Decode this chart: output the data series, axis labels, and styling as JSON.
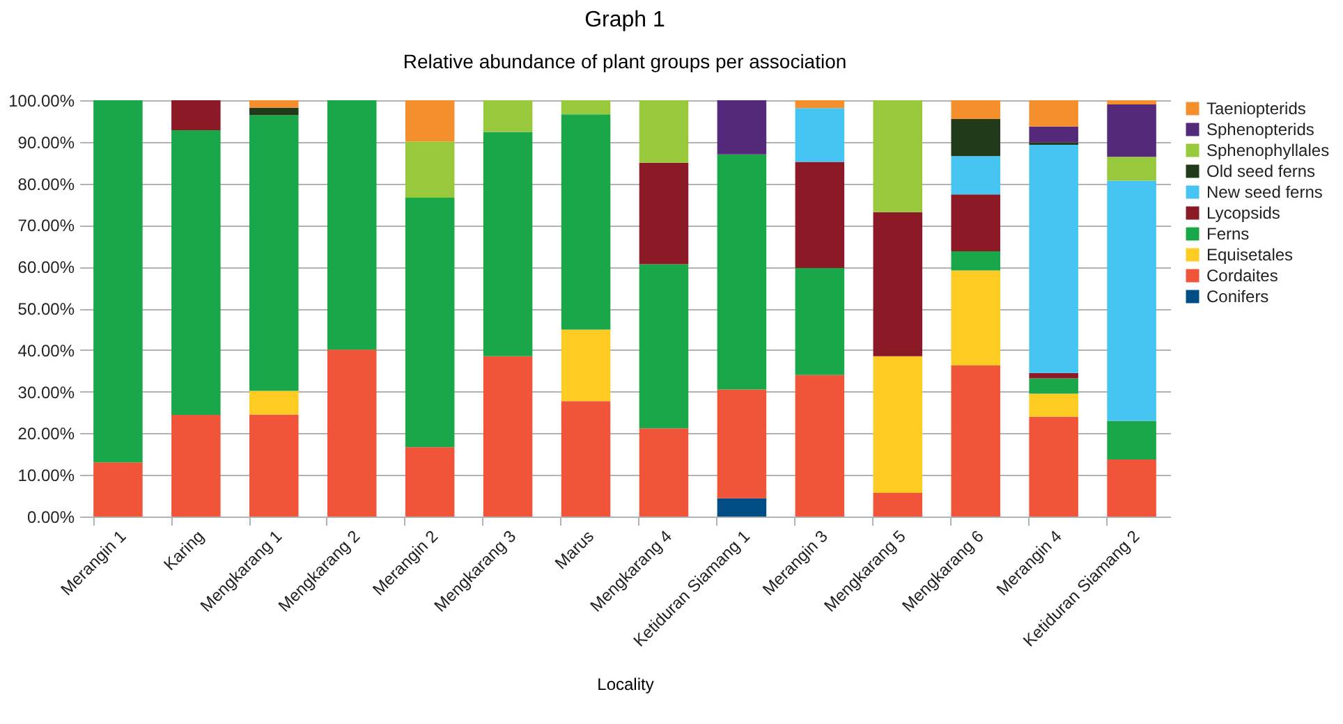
{
  "chart_data": {
    "type": "bar",
    "title": "Graph 1",
    "subtitle": "Relative abundance of plant groups per association",
    "xlabel": "Locality",
    "stacked": true,
    "grid": "y",
    "legend": "right",
    "categories": [
      "Merangin 1",
      "Karing",
      "Mengkarang 1",
      "Mengkarang 2",
      "Merangin 2",
      "Mengkarang 3",
      "Marus",
      "Mengkarang 4",
      "Ketiduran Siamang 1",
      "Merangin 3",
      "Mengkarang 5",
      "Mengkarang 6",
      "Merangin 4",
      "Ketiduran Siamang 2"
    ],
    "ylim": [
      0,
      100
    ],
    "yticks": [
      {
        "value": 0,
        "label": "0.00%"
      },
      {
        "value": 10,
        "label": "10.00%"
      },
      {
        "value": 20,
        "label": "20.00%"
      },
      {
        "value": 30,
        "label": "30.00%"
      },
      {
        "value": 40,
        "label": "40.00%"
      },
      {
        "value": 50,
        "label": "50.00%"
      },
      {
        "value": 60,
        "label": "60.00%"
      },
      {
        "value": 70,
        "label": "70.00%"
      },
      {
        "value": 80,
        "label": "80.00%"
      },
      {
        "value": 90,
        "label": "90.00%"
      },
      {
        "value": 100,
        "label": "100.00%"
      }
    ],
    "series": [
      {
        "name": "Conifers",
        "color": "#004d86",
        "values": [
          null,
          null,
          null,
          null,
          null,
          null,
          null,
          null,
          4.4,
          null,
          null,
          null,
          null,
          null
        ]
      },
      {
        "name": "Cordaites",
        "color": "#f0553a",
        "values": [
          13.0,
          24.4,
          24.5,
          40.1,
          16.7,
          38.5,
          27.7,
          21.2,
          26.1,
          34.0,
          5.7,
          36.3,
          24.0,
          13.7
        ]
      },
      {
        "name": "Equisetales",
        "color": "#fecb22",
        "values": [
          null,
          null,
          5.7,
          null,
          null,
          null,
          17.2,
          null,
          null,
          null,
          32.8,
          22.8,
          5.5,
          null
        ]
      },
      {
        "name": "Ferns",
        "color": "#1aa74a",
        "values": [
          87.0,
          68.4,
          66.2,
          59.9,
          59.9,
          53.9,
          51.7,
          39.4,
          56.5,
          25.7,
          null,
          4.6,
          3.7,
          9.3
        ]
      },
      {
        "name": "Lycopsids",
        "color": "#8c1a26",
        "values": [
          null,
          7.2,
          null,
          null,
          null,
          null,
          null,
          24.4,
          null,
          25.5,
          34.6,
          13.7,
          1.3,
          null
        ]
      },
      {
        "name": "New seed ferns",
        "color": "#47c5f2",
        "values": [
          null,
          null,
          null,
          null,
          null,
          null,
          null,
          null,
          null,
          12.9,
          null,
          9.2,
          54.8,
          57.7
        ]
      },
      {
        "name": "Old seed ferns",
        "color": "#213a1a",
        "values": [
          null,
          null,
          1.8,
          null,
          null,
          null,
          null,
          null,
          null,
          null,
          null,
          8.9,
          0.6,
          null
        ]
      },
      {
        "name": "Sphenophyllales",
        "color": "#98c83c",
        "values": [
          null,
          null,
          null,
          null,
          13.5,
          7.6,
          3.4,
          15.0,
          null,
          null,
          26.9,
          null,
          null,
          5.7
        ]
      },
      {
        "name": "Sphenopterids",
        "color": "#55297a",
        "values": [
          null,
          null,
          null,
          null,
          null,
          null,
          null,
          null,
          13.0,
          null,
          null,
          null,
          3.8,
          12.6
        ]
      },
      {
        "name": "Taeniopterids",
        "color": "#f58f2e",
        "values": [
          null,
          null,
          1.8,
          null,
          9.9,
          null,
          null,
          null,
          null,
          1.9,
          null,
          4.5,
          6.3,
          1.0
        ]
      }
    ]
  }
}
